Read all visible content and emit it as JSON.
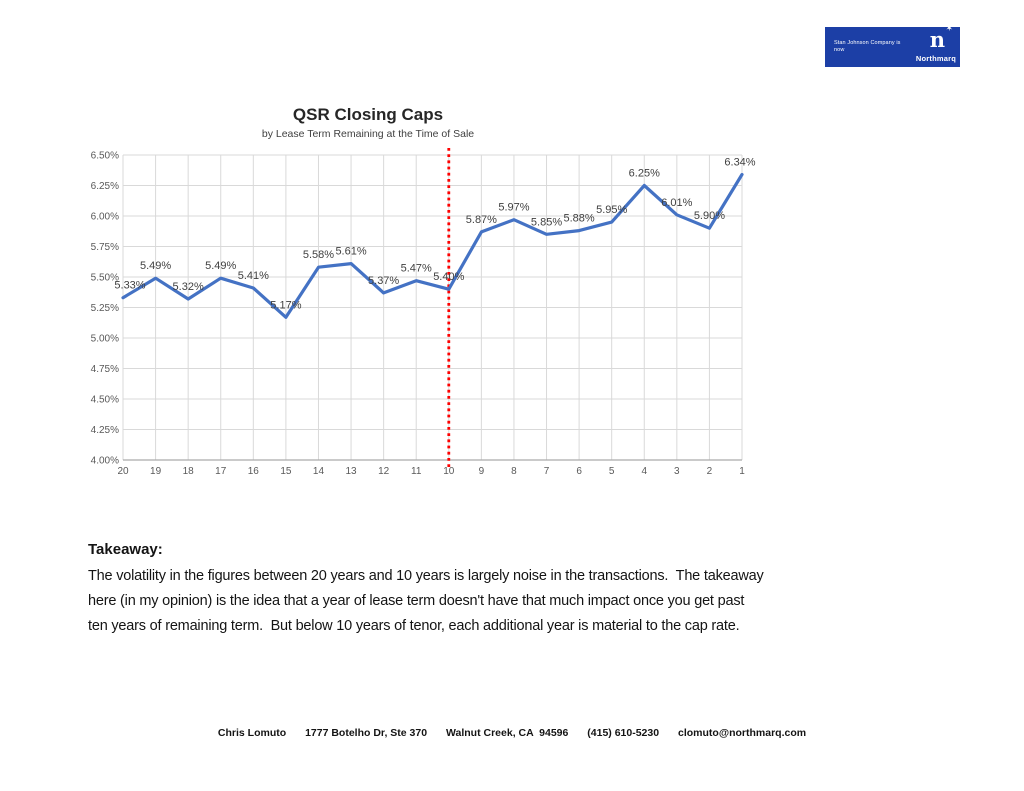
{
  "logo": {
    "tagline": "Stan Johnson Company is now",
    "monogram": "n",
    "brand": "Northmarq",
    "background_color": "#1c3fa6",
    "text_color": "#ffffff"
  },
  "chart_data": {
    "type": "line",
    "title": "QSR Closing Caps",
    "subtitle": "by Lease Term Remaining at the Time of Sale",
    "categories": [
      20,
      19,
      18,
      17,
      16,
      15,
      14,
      13,
      12,
      11,
      10,
      9,
      8,
      7,
      6,
      5,
      4,
      3,
      2,
      1
    ],
    "values": [
      5.33,
      5.49,
      5.32,
      5.49,
      5.41,
      5.17,
      5.58,
      5.61,
      5.37,
      5.47,
      5.4,
      5.87,
      5.97,
      5.85,
      5.88,
      5.95,
      6.25,
      6.01,
      5.9,
      6.34
    ],
    "data_labels": [
      "5.33%",
      "5.49%",
      "5.32%",
      "5.49%",
      "5.41%",
      "5.17%",
      "5.58%",
      "5.61%",
      "5.37%",
      "5.47%",
      "5.40%",
      "5.87%",
      "5.97%",
      "5.85%",
      "5.88%",
      "5.95%",
      "6.25%",
      "6.01%",
      "5.90%",
      "6.34%"
    ],
    "xlabel": "",
    "ylabel": "",
    "ylim": [
      4.0,
      6.5
    ],
    "ytick_step": 0.25,
    "ytick_labels": [
      "4.00%",
      "4.25%",
      "4.50%",
      "4.75%",
      "5.00%",
      "5.25%",
      "5.50%",
      "5.75%",
      "6.00%",
      "6.25%",
      "6.50%"
    ],
    "grid": true,
    "legend": "none",
    "line_color": "#4472C4",
    "gridline_color": "#D9D9D9",
    "axis_line_color": "#ABABAB",
    "axis_label_color": "#595959",
    "data_label_color": "#3f3f3f",
    "divider": {
      "at_category": 10,
      "color": "#FF0000",
      "style": "dotted"
    }
  },
  "takeaway": {
    "heading": "Takeaway:",
    "lines": [
      "The volatility in the figures between 20 years and 10 years is largely noise in the transactions.  The takeaway",
      "here (in my opinion) is the idea that a year of lease term doesn't have that much impact once you get past",
      "ten years of remaining term.  But below 10 years of tenor, each additional year is material to the cap rate."
    ]
  },
  "footer": {
    "parts": [
      "Chris Lomuto",
      "1777 Botelho Dr, Ste 370",
      "Walnut Creek, CA  94596",
      "(415) 610-5230",
      "clomuto@northmarq.com"
    ]
  }
}
